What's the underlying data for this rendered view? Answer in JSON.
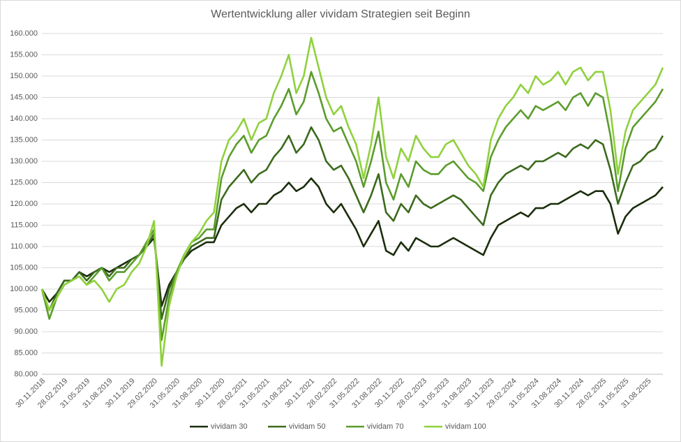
{
  "chart_data": {
    "type": "line",
    "title": "Wertentwicklung aller vividam Strategien seit Beginn",
    "categories": [
      "30.11.2018",
      null,
      null,
      "28.02.2019",
      null,
      null,
      "31.05.2019",
      null,
      null,
      "31.08.2019",
      null,
      null,
      "30.11.2019",
      null,
      null,
      "29.02.2020",
      null,
      null,
      "31.05.2020",
      null,
      null,
      "31.08.2020",
      null,
      null,
      "30.11.2020",
      null,
      null,
      "28.02.2021",
      null,
      null,
      "31.05.2021",
      null,
      null,
      "31.08.2021",
      null,
      null,
      "30.11.2021",
      null,
      null,
      "28.02.2022",
      null,
      null,
      "31.05.2022",
      null,
      null,
      "31.08.2022",
      null,
      null,
      "30.11.2022",
      null,
      null,
      "28.02.2023",
      null,
      null,
      "31.05.2023",
      null,
      null,
      "31.08.2023",
      null,
      null,
      "30.11.2023",
      null,
      null,
      "29.02.2024",
      null,
      null,
      "31.05.2024",
      null,
      null,
      "31.08.2024",
      null,
      null,
      "30.11.2024",
      null,
      null,
      "28.02.2025",
      null,
      null,
      "31.05.2025",
      null,
      null,
      "31.08.2025",
      null,
      null
    ],
    "series": [
      {
        "name": "vividam 30",
        "color": "#1b2d0c",
        "values": [
          100000,
          97000,
          99000,
          102000,
          102000,
          104000,
          103000,
          104000,
          105000,
          104000,
          105000,
          106000,
          107000,
          108000,
          110000,
          112000,
          96000,
          101000,
          104000,
          107000,
          109000,
          110000,
          111000,
          111000,
          115000,
          117000,
          119000,
          120000,
          118000,
          120000,
          120000,
          122000,
          123000,
          125000,
          123000,
          124000,
          126000,
          124000,
          120000,
          118000,
          120000,
          117000,
          114000,
          110000,
          113000,
          116000,
          109000,
          108000,
          111000,
          109000,
          112000,
          111000,
          110000,
          110000,
          111000,
          112000,
          111000,
          110000,
          109000,
          108000,
          112000,
          115000,
          116000,
          117000,
          118000,
          117000,
          119000,
          119000,
          120000,
          120000,
          121000,
          122000,
          123000,
          122000,
          123000,
          123000,
          120000,
          113000,
          117000,
          119000,
          120000,
          121000,
          122000,
          124000
        ]
      },
      {
        "name": "vividam 50",
        "color": "#3b6a1c",
        "values": [
          100000,
          95000,
          99000,
          102000,
          102000,
          104000,
          102000,
          104000,
          105000,
          103000,
          105000,
          105000,
          107000,
          108000,
          110000,
          113000,
          93000,
          100000,
          104000,
          107000,
          110000,
          111000,
          112000,
          112000,
          121000,
          124000,
          126000,
          128000,
          125000,
          127000,
          128000,
          131000,
          133000,
          136000,
          132000,
          134000,
          138000,
          135000,
          130000,
          128000,
          129000,
          126000,
          122000,
          118000,
          122000,
          127000,
          118000,
          116000,
          120000,
          118000,
          122000,
          120000,
          119000,
          120000,
          121000,
          122000,
          121000,
          119000,
          117000,
          115000,
          122000,
          125000,
          127000,
          128000,
          129000,
          128000,
          130000,
          130000,
          131000,
          132000,
          131000,
          133000,
          134000,
          133000,
          135000,
          134000,
          128000,
          120000,
          125000,
          129000,
          130000,
          132000,
          133000,
          136000
        ]
      },
      {
        "name": "vividam 70",
        "color": "#5a9c2b",
        "values": [
          100000,
          93000,
          98000,
          101000,
          102000,
          103000,
          101000,
          103000,
          105000,
          102000,
          104000,
          104000,
          106000,
          108000,
          111000,
          114000,
          88000,
          98000,
          104000,
          108000,
          111000,
          112000,
          114000,
          114000,
          126000,
          131000,
          134000,
          136000,
          132000,
          135000,
          136000,
          140000,
          143000,
          147000,
          141000,
          144000,
          151000,
          146000,
          140000,
          137000,
          138000,
          134000,
          130000,
          124000,
          130000,
          137000,
          125000,
          121000,
          127000,
          124000,
          130000,
          128000,
          127000,
          127000,
          129000,
          130000,
          128000,
          126000,
          125000,
          123000,
          131000,
          135000,
          138000,
          140000,
          142000,
          140000,
          143000,
          142000,
          143000,
          144000,
          142000,
          145000,
          146000,
          143000,
          146000,
          145000,
          136000,
          123000,
          133000,
          138000,
          140000,
          142000,
          144000,
          147000
        ]
      },
      {
        "name": "vividam 100",
        "color": "#8fd13c",
        "values": [
          100000,
          95000,
          98000,
          101000,
          102000,
          103000,
          101000,
          102000,
          100000,
          97000,
          100000,
          101000,
          104000,
          106000,
          110000,
          116000,
          82000,
          96000,
          103000,
          108000,
          111000,
          113000,
          116000,
          118000,
          130000,
          135000,
          137000,
          140000,
          135000,
          139000,
          140000,
          146000,
          150000,
          155000,
          146000,
          150000,
          159000,
          152000,
          145000,
          141000,
          143000,
          138000,
          134000,
          126000,
          134000,
          145000,
          131000,
          126000,
          133000,
          130000,
          136000,
          133000,
          131000,
          131000,
          134000,
          135000,
          132000,
          129000,
          127000,
          124000,
          135000,
          140000,
          143000,
          145000,
          148000,
          146000,
          150000,
          148000,
          149000,
          151000,
          148000,
          151000,
          152000,
          149000,
          151000,
          151000,
          142000,
          127000,
          137000,
          142000,
          144000,
          146000,
          148000,
          152000
        ]
      }
    ],
    "ylim": [
      80000,
      160000
    ],
    "yticks": [
      {
        "value": 80000,
        "label": "80.000"
      },
      {
        "value": 85000,
        "label": "85.000"
      },
      {
        "value": 90000,
        "label": "90.000"
      },
      {
        "value": 95000,
        "label": "95.000"
      },
      {
        "value": 100000,
        "label": "100.000"
      },
      {
        "value": 105000,
        "label": "105.000"
      },
      {
        "value": 110000,
        "label": "110.000"
      },
      {
        "value": 115000,
        "label": "115.000"
      },
      {
        "value": 120000,
        "label": "120.000"
      },
      {
        "value": 125000,
        "label": "125.000"
      },
      {
        "value": 130000,
        "label": "130.000"
      },
      {
        "value": 135000,
        "label": "135.000"
      },
      {
        "value": 140000,
        "label": "140.000"
      },
      {
        "value": 145000,
        "label": "145.000"
      },
      {
        "value": 150000,
        "label": "150.000"
      },
      {
        "value": 155000,
        "label": "155.000"
      },
      {
        "value": 160000,
        "label": "160.000"
      }
    ],
    "grid": true,
    "legend": "bottom"
  }
}
